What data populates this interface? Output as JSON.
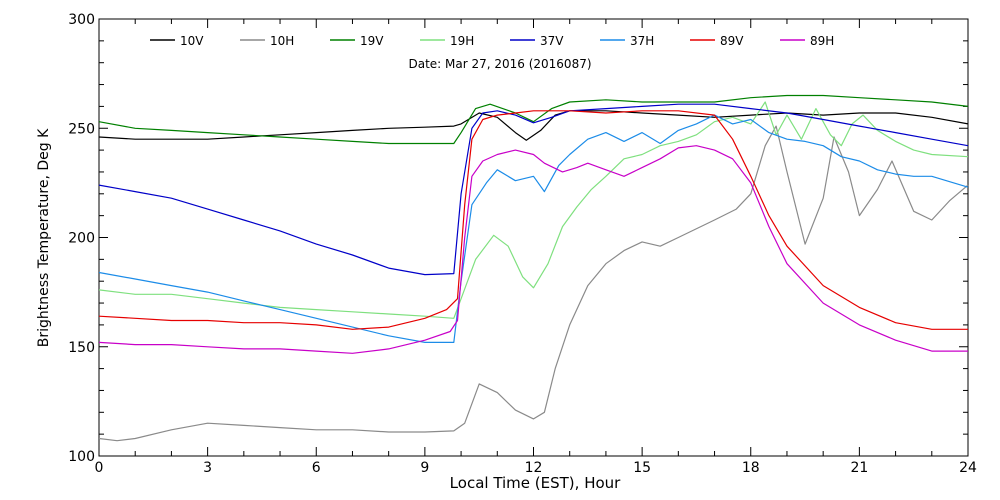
{
  "chart_data": {
    "type": "line",
    "title": "",
    "annotation": "Date: Mar 27, 2016 (2016087)",
    "xlabel": "Local Time (EST), Hour",
    "ylabel": "Brightness Temperature, Deg K",
    "xlim": [
      0,
      24
    ],
    "ylim": [
      100,
      300
    ],
    "xticks": [
      0,
      3,
      6,
      9,
      12,
      15,
      18,
      21,
      24
    ],
    "yticks": [
      100,
      150,
      200,
      250,
      300
    ],
    "x_minor_step": 1,
    "y_minor_step": 10,
    "grid": false,
    "legend_position": "top",
    "series": [
      {
        "name": "10V",
        "color": "#000000",
        "points": [
          [
            0,
            246
          ],
          [
            1,
            245
          ],
          [
            2,
            245
          ],
          [
            3,
            245
          ],
          [
            4,
            246
          ],
          [
            5,
            247
          ],
          [
            6,
            248
          ],
          [
            7,
            249
          ],
          [
            8,
            250
          ],
          [
            9,
            250.5
          ],
          [
            9.8,
            251
          ],
          [
            10,
            252
          ],
          [
            10.5,
            257
          ],
          [
            11,
            255
          ],
          [
            11.5,
            248
          ],
          [
            11.8,
            244.5
          ],
          [
            12.2,
            249
          ],
          [
            12.6,
            256
          ],
          [
            13,
            258
          ],
          [
            14,
            258
          ],
          [
            15,
            257
          ],
          [
            16,
            256
          ],
          [
            17,
            255
          ],
          [
            18,
            256
          ],
          [
            19,
            257
          ],
          [
            20,
            256
          ],
          [
            21,
            257
          ],
          [
            22,
            257
          ],
          [
            23,
            255
          ],
          [
            24,
            252
          ]
        ]
      },
      {
        "name": "10H",
        "color": "#8a8a8a",
        "points": [
          [
            0,
            108
          ],
          [
            0.5,
            107
          ],
          [
            1,
            108
          ],
          [
            2,
            112
          ],
          [
            3,
            115
          ],
          [
            4,
            114
          ],
          [
            5,
            113
          ],
          [
            6,
            112
          ],
          [
            7,
            112
          ],
          [
            8,
            111
          ],
          [
            9,
            111
          ],
          [
            9.8,
            111.5
          ],
          [
            10.1,
            115
          ],
          [
            10.5,
            133
          ],
          [
            11,
            129
          ],
          [
            11.5,
            121
          ],
          [
            12,
            117
          ],
          [
            12.3,
            120
          ],
          [
            12.6,
            140
          ],
          [
            13,
            160
          ],
          [
            13.5,
            178
          ],
          [
            14,
            188
          ],
          [
            14.5,
            194
          ],
          [
            15,
            198
          ],
          [
            15.5,
            196
          ],
          [
            16,
            200
          ],
          [
            17,
            208
          ],
          [
            17.6,
            213
          ],
          [
            18,
            220
          ],
          [
            18.4,
            242
          ],
          [
            18.7,
            251
          ],
          [
            19,
            230
          ],
          [
            19.5,
            197
          ],
          [
            20,
            218
          ],
          [
            20.3,
            246
          ],
          [
            20.7,
            230
          ],
          [
            21,
            210
          ],
          [
            21.5,
            222
          ],
          [
            21.9,
            235
          ],
          [
            22.5,
            212
          ],
          [
            23,
            208
          ],
          [
            23.5,
            217
          ],
          [
            24,
            224
          ]
        ]
      },
      {
        "name": "19V",
        "color": "#008000",
        "points": [
          [
            0,
            253
          ],
          [
            1,
            250
          ],
          [
            2,
            249
          ],
          [
            3,
            248
          ],
          [
            4,
            247
          ],
          [
            5,
            246
          ],
          [
            6,
            245
          ],
          [
            7,
            244
          ],
          [
            8,
            243
          ],
          [
            9,
            243
          ],
          [
            9.8,
            243
          ],
          [
            10,
            248
          ],
          [
            10.4,
            259
          ],
          [
            10.8,
            261
          ],
          [
            11.5,
            257
          ],
          [
            12,
            253
          ],
          [
            12.5,
            259
          ],
          [
            13,
            262
          ],
          [
            14,
            263
          ],
          [
            15,
            262
          ],
          [
            16,
            262
          ],
          [
            17,
            262
          ],
          [
            18,
            264
          ],
          [
            19,
            265
          ],
          [
            20,
            265
          ],
          [
            21,
            264
          ],
          [
            22,
            263
          ],
          [
            23,
            262
          ],
          [
            24,
            260
          ]
        ]
      },
      {
        "name": "19H",
        "color": "#7fe07f",
        "points": [
          [
            0,
            176
          ],
          [
            1,
            174
          ],
          [
            2,
            174
          ],
          [
            3,
            172
          ],
          [
            4,
            170
          ],
          [
            5,
            168
          ],
          [
            6,
            167
          ],
          [
            7,
            166
          ],
          [
            8,
            165
          ],
          [
            9,
            164
          ],
          [
            9.8,
            163
          ],
          [
            10,
            172
          ],
          [
            10.4,
            190
          ],
          [
            10.9,
            201
          ],
          [
            11.3,
            196
          ],
          [
            11.7,
            182
          ],
          [
            12,
            177
          ],
          [
            12.4,
            188
          ],
          [
            12.8,
            205
          ],
          [
            13.2,
            214
          ],
          [
            13.6,
            222
          ],
          [
            14,
            228
          ],
          [
            14.5,
            236
          ],
          [
            15,
            238
          ],
          [
            15.5,
            242
          ],
          [
            16,
            244
          ],
          [
            16.5,
            247
          ],
          [
            17,
            253
          ],
          [
            17.5,
            255
          ],
          [
            18,
            252
          ],
          [
            18.4,
            262
          ],
          [
            18.7,
            247
          ],
          [
            19,
            256
          ],
          [
            19.4,
            245
          ],
          [
            19.8,
            259
          ],
          [
            20.2,
            247
          ],
          [
            20.5,
            242
          ],
          [
            20.8,
            252
          ],
          [
            21.1,
            256
          ],
          [
            21.5,
            249
          ],
          [
            22,
            244
          ],
          [
            22.5,
            240
          ],
          [
            23,
            238
          ],
          [
            24,
            237
          ]
        ]
      },
      {
        "name": "37V",
        "color": "#0000c8",
        "points": [
          [
            0,
            224
          ],
          [
            1,
            221
          ],
          [
            2,
            218
          ],
          [
            3,
            213
          ],
          [
            4,
            208
          ],
          [
            5,
            203
          ],
          [
            6,
            197
          ],
          [
            7,
            192
          ],
          [
            8,
            186
          ],
          [
            9,
            183
          ],
          [
            9.8,
            183.5
          ],
          [
            10,
            220
          ],
          [
            10.3,
            250
          ],
          [
            10.6,
            257
          ],
          [
            11,
            258
          ],
          [
            11.5,
            256
          ],
          [
            12,
            252.5
          ],
          [
            12.5,
            255
          ],
          [
            13,
            258
          ],
          [
            14,
            259
          ],
          [
            15,
            260
          ],
          [
            16,
            261
          ],
          [
            17,
            261
          ],
          [
            18,
            259
          ],
          [
            19,
            257
          ],
          [
            20,
            254
          ],
          [
            21,
            251
          ],
          [
            22,
            248
          ],
          [
            23,
            245
          ],
          [
            24,
            242
          ]
        ]
      },
      {
        "name": "37H",
        "color": "#1c8ce8",
        "points": [
          [
            0,
            184
          ],
          [
            1,
            181
          ],
          [
            2,
            178
          ],
          [
            3,
            175
          ],
          [
            4,
            171
          ],
          [
            5,
            167
          ],
          [
            6,
            163
          ],
          [
            7,
            159
          ],
          [
            8,
            155
          ],
          [
            9,
            152
          ],
          [
            9.8,
            152
          ],
          [
            10,
            180
          ],
          [
            10.3,
            215
          ],
          [
            10.7,
            225
          ],
          [
            11,
            231
          ],
          [
            11.5,
            226
          ],
          [
            12,
            228
          ],
          [
            12.3,
            221
          ],
          [
            12.7,
            233
          ],
          [
            13,
            238
          ],
          [
            13.5,
            245
          ],
          [
            14,
            248
          ],
          [
            14.5,
            244
          ],
          [
            15,
            248
          ],
          [
            15.5,
            243
          ],
          [
            16,
            249
          ],
          [
            16.5,
            252
          ],
          [
            17,
            256
          ],
          [
            17.5,
            252
          ],
          [
            18,
            254
          ],
          [
            18.5,
            248
          ],
          [
            19,
            245
          ],
          [
            19.5,
            244
          ],
          [
            20,
            242
          ],
          [
            20.5,
            237
          ],
          [
            21,
            235
          ],
          [
            21.5,
            231
          ],
          [
            22,
            229
          ],
          [
            22.5,
            228
          ],
          [
            23,
            228
          ],
          [
            24,
            223
          ]
        ]
      },
      {
        "name": "89V",
        "color": "#e60000",
        "points": [
          [
            0,
            164
          ],
          [
            1,
            163
          ],
          [
            2,
            162
          ],
          [
            3,
            162
          ],
          [
            4,
            161
          ],
          [
            5,
            161
          ],
          [
            6,
            160
          ],
          [
            7,
            158
          ],
          [
            8,
            159
          ],
          [
            9,
            163
          ],
          [
            9.6,
            167
          ],
          [
            9.9,
            172
          ],
          [
            10.1,
            215
          ],
          [
            10.3,
            245
          ],
          [
            10.6,
            254
          ],
          [
            11,
            256
          ],
          [
            11.5,
            257
          ],
          [
            12,
            258
          ],
          [
            13,
            258
          ],
          [
            14,
            257
          ],
          [
            15,
            258
          ],
          [
            16,
            258
          ],
          [
            17,
            256
          ],
          [
            17.5,
            245
          ],
          [
            18,
            228
          ],
          [
            18.5,
            210
          ],
          [
            19,
            196
          ],
          [
            20,
            178
          ],
          [
            21,
            168
          ],
          [
            22,
            161
          ],
          [
            23,
            158
          ],
          [
            24,
            158
          ]
        ]
      },
      {
        "name": "89H",
        "color": "#c800c8",
        "points": [
          [
            0,
            152
          ],
          [
            1,
            151
          ],
          [
            2,
            151
          ],
          [
            3,
            150
          ],
          [
            4,
            149
          ],
          [
            5,
            149
          ],
          [
            6,
            148
          ],
          [
            7,
            147
          ],
          [
            8,
            149
          ],
          [
            9,
            153
          ],
          [
            9.7,
            157
          ],
          [
            9.9,
            162
          ],
          [
            10.1,
            200
          ],
          [
            10.3,
            228
          ],
          [
            10.6,
            235
          ],
          [
            11,
            238
          ],
          [
            11.5,
            240
          ],
          [
            12,
            238
          ],
          [
            12.3,
            234
          ],
          [
            12.8,
            230
          ],
          [
            13.2,
            232
          ],
          [
            13.5,
            234
          ],
          [
            14,
            231
          ],
          [
            14.5,
            228
          ],
          [
            15,
            232
          ],
          [
            15.5,
            236
          ],
          [
            16,
            241
          ],
          [
            16.5,
            242
          ],
          [
            17,
            240
          ],
          [
            17.5,
            236
          ],
          [
            18,
            225
          ],
          [
            18.5,
            205
          ],
          [
            19,
            188
          ],
          [
            20,
            170
          ],
          [
            21,
            160
          ],
          [
            22,
            153
          ],
          [
            23,
            148
          ],
          [
            24,
            148
          ]
        ]
      }
    ]
  }
}
